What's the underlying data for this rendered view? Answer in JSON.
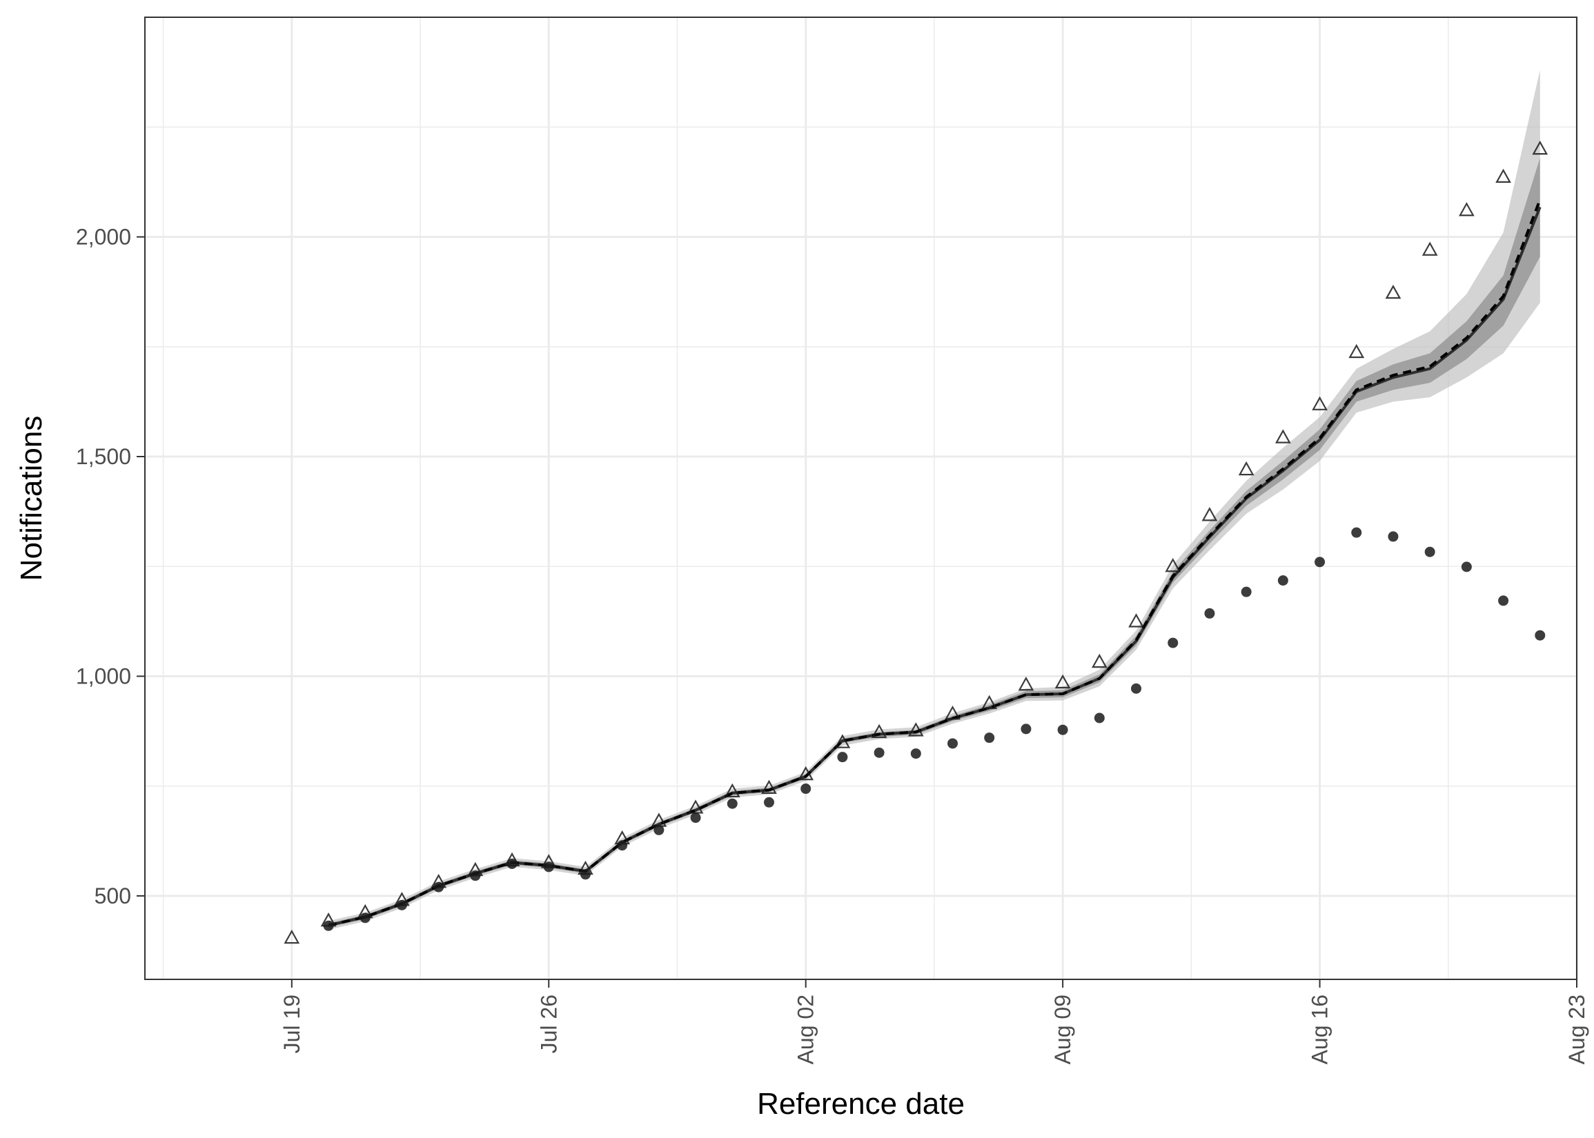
{
  "chart_data": {
    "type": "line",
    "title": "",
    "xlabel": "Reference date",
    "ylabel": "Notifications",
    "x_range": [
      "2021-07-15",
      "2021-08-23"
    ],
    "ylim": [
      310,
      2500
    ],
    "x_ticks": [
      {
        "date": "2021-07-19",
        "label": "Jul 19"
      },
      {
        "date": "2021-07-26",
        "label": "Jul 26"
      },
      {
        "date": "2021-08-02",
        "label": "Aug 02"
      },
      {
        "date": "2021-08-09",
        "label": "Aug 09"
      },
      {
        "date": "2021-08-16",
        "label": "Aug 16"
      },
      {
        "date": "2021-08-23",
        "label": "Aug 23"
      }
    ],
    "y_ticks": [
      {
        "value": 500,
        "label": "500"
      },
      {
        "value": 1000,
        "label": "1,000"
      },
      {
        "value": 1500,
        "label": "1,500"
      },
      {
        "value": 2000,
        "label": "2,000"
      }
    ],
    "grid": true,
    "colors": {
      "points": "#1a1a1a",
      "line": "#1a1a1a",
      "ribbon_outer": "#bdbdbd",
      "ribbon_inner": "#8c8c8c",
      "grid": "#ebebeb",
      "border": "#333333"
    },
    "x": [
      "2021-07-19",
      "2021-07-20",
      "2021-07-21",
      "2021-07-22",
      "2021-07-23",
      "2021-07-24",
      "2021-07-25",
      "2021-07-26",
      "2021-07-27",
      "2021-07-28",
      "2021-07-29",
      "2021-07-30",
      "2021-07-31",
      "2021-08-01",
      "2021-08-02",
      "2021-08-03",
      "2021-08-04",
      "2021-08-05",
      "2021-08-06",
      "2021-08-07",
      "2021-08-08",
      "2021-08-09",
      "2021-08-10",
      "2021-08-11",
      "2021-08-12",
      "2021-08-13",
      "2021-08-14",
      "2021-08-15",
      "2021-08-16",
      "2021-08-17",
      "2021-08-18",
      "2021-08-19",
      "2021-08-20",
      "2021-08-21",
      "2021-08-22"
    ],
    "series": [
      {
        "marker": "triangle",
        "values": [
          404,
          443,
          462,
          490,
          531,
          558,
          580,
          576,
          561,
          630,
          670,
          700,
          737,
          745,
          776,
          849,
          872,
          876,
          914,
          938,
          980,
          985,
          1032,
          1124,
          1250,
          1366,
          1470,
          1543,
          1618,
          1737,
          1872,
          1970,
          2060,
          2136,
          2200
        ]
      },
      {
        "marker": "circle",
        "values": [
          null,
          432,
          450,
          479,
          520,
          546,
          573,
          566,
          549,
          615,
          650,
          678,
          710,
          713,
          744,
          816,
          826,
          824,
          847,
          860,
          880,
          878,
          905,
          972,
          1076,
          1143,
          1192,
          1218,
          1260,
          1327,
          1318,
          1283,
          1249,
          1172,
          1093
        ]
      },
      {
        "marker": "line",
        "values": [
          null,
          433,
          452,
          482,
          523,
          551,
          576,
          569,
          556,
          622,
          663,
          695,
          734,
          741,
          772,
          853,
          868,
          873,
          904,
          928,
          958,
          960,
          995,
          1080,
          1225,
          1317,
          1405,
          1468,
          1538,
          1648,
          1680,
          1700,
          1765,
          1858,
          2068
        ]
      },
      {
        "marker": "dashed-line",
        "values": [
          null,
          433,
          452,
          482,
          523,
          551,
          576,
          569,
          556,
          622,
          663,
          695,
          734,
          741,
          772,
          853,
          868,
          873,
          904,
          928,
          958,
          960,
          995,
          1082,
          1228,
          1320,
          1408,
          1472,
          1542,
          1652,
          1685,
          1705,
          1770,
          1865,
          2085
        ]
      },
      {
        "marker": "ribbon-outer",
        "lower": [
          null,
          423,
          442,
          472,
          513,
          541,
          566,
          559,
          546,
          612,
          653,
          685,
          724,
          731,
          762,
          842,
          857,
          862,
          892,
          915,
          944,
          945,
          977,
          1060,
          1200,
          1287,
          1370,
          1425,
          1490,
          1600,
          1625,
          1635,
          1680,
          1735,
          1850
        ],
        "upper": [
          null,
          443,
          462,
          492,
          533,
          561,
          586,
          579,
          566,
          632,
          673,
          705,
          744,
          751,
          782,
          864,
          879,
          884,
          916,
          941,
          972,
          976,
          1015,
          1104,
          1253,
          1352,
          1445,
          1520,
          1590,
          1700,
          1745,
          1785,
          1870,
          2010,
          2380
        ]
      },
      {
        "marker": "ribbon-inner",
        "lower": [
          null,
          428,
          447,
          477,
          518,
          546,
          571,
          564,
          551,
          617,
          658,
          690,
          729,
          736,
          767,
          848,
          862,
          867,
          898,
          921,
          950,
          952,
          986,
          1070,
          1213,
          1302,
          1388,
          1448,
          1515,
          1625,
          1652,
          1668,
          1722,
          1798,
          1955
        ],
        "upper": [
          null,
          438,
          457,
          487,
          528,
          556,
          581,
          574,
          561,
          627,
          668,
          700,
          739,
          746,
          777,
          858,
          873,
          878,
          910,
          935,
          966,
          968,
          1004,
          1092,
          1238,
          1332,
          1422,
          1490,
          1562,
          1672,
          1710,
          1735,
          1808,
          1912,
          2180
        ]
      }
    ]
  }
}
